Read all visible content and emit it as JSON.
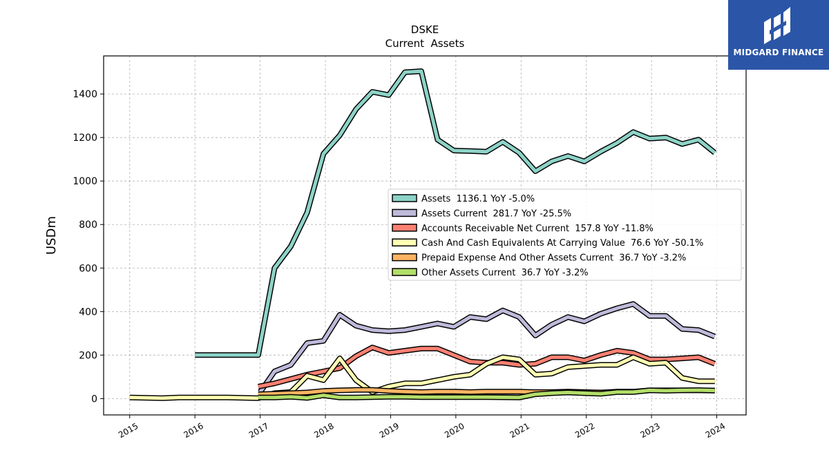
{
  "chart_data": {
    "type": "line",
    "title": "DSKE",
    "subtitle": "Current  Assets",
    "xlabel": "",
    "ylabel": "USDm",
    "xlim": [
      2014.6,
      2024.45
    ],
    "ylim": [
      -75,
      1575
    ],
    "x_ticks": [
      2015,
      2016,
      2017,
      2018,
      2019,
      2020,
      2021,
      2022,
      2023,
      2024
    ],
    "x_tick_labels": [
      "2015",
      "2016",
      "2017",
      "2018",
      "2019",
      "2020",
      "2021",
      "2022",
      "2023",
      "2024"
    ],
    "y_ticks": [
      0,
      200,
      400,
      600,
      800,
      1000,
      1200,
      1400
    ],
    "y_tick_labels": [
      "0",
      "200",
      "400",
      "600",
      "800",
      "1000",
      "1200",
      "1400"
    ],
    "grid": true,
    "legend_position": "center-right",
    "series": [
      {
        "name": "Assets  1136.1 YoY -5.0%",
        "color": "#8dd3c7",
        "points": [
          [
            2016.0,
            200
          ],
          [
            2016.97,
            200
          ],
          [
            2017.22,
            600
          ],
          [
            2017.47,
            700
          ],
          [
            2017.72,
            855
          ],
          [
            2017.97,
            1125
          ],
          [
            2018.22,
            1210
          ],
          [
            2018.47,
            1330
          ],
          [
            2018.72,
            1410
          ],
          [
            2018.97,
            1395
          ],
          [
            2019.22,
            1500
          ],
          [
            2019.47,
            1505
          ],
          [
            2019.72,
            1190
          ],
          [
            2019.97,
            1140
          ],
          [
            2020.22,
            1138
          ],
          [
            2020.47,
            1135
          ],
          [
            2020.72,
            1180
          ],
          [
            2020.97,
            1130
          ],
          [
            2021.22,
            1045
          ],
          [
            2021.47,
            1090
          ],
          [
            2021.72,
            1115
          ],
          [
            2021.97,
            1090
          ],
          [
            2022.22,
            1135
          ],
          [
            2022.47,
            1175
          ],
          [
            2022.72,
            1225
          ],
          [
            2022.97,
            1195
          ],
          [
            2023.22,
            1200
          ],
          [
            2023.47,
            1170
          ],
          [
            2023.72,
            1190
          ],
          [
            2023.97,
            1130
          ]
        ]
      },
      {
        "name": "Assets Current  281.7 YoY -25.5%",
        "color": "#bebada",
        "points": [
          [
            2017.0,
            30
          ],
          [
            2017.22,
            125
          ],
          [
            2017.47,
            155
          ],
          [
            2017.72,
            255
          ],
          [
            2017.97,
            265
          ],
          [
            2018.22,
            385
          ],
          [
            2018.47,
            335
          ],
          [
            2018.72,
            315
          ],
          [
            2018.97,
            310
          ],
          [
            2019.22,
            315
          ],
          [
            2019.47,
            330
          ],
          [
            2019.72,
            345
          ],
          [
            2019.97,
            330
          ],
          [
            2020.22,
            375
          ],
          [
            2020.47,
            365
          ],
          [
            2020.72,
            405
          ],
          [
            2020.97,
            375
          ],
          [
            2021.22,
            290
          ],
          [
            2021.47,
            340
          ],
          [
            2021.72,
            375
          ],
          [
            2021.97,
            355
          ],
          [
            2022.22,
            390
          ],
          [
            2022.47,
            415
          ],
          [
            2022.72,
            435
          ],
          [
            2022.97,
            380
          ],
          [
            2023.22,
            380
          ],
          [
            2023.47,
            320
          ],
          [
            2023.72,
            315
          ],
          [
            2023.97,
            285
          ]
        ]
      },
      {
        "name": "Accounts Receivable Net Current  157.8 YoY -11.8%",
        "color": "#fb8072",
        "points": [
          [
            2016.97,
            55
          ],
          [
            2017.22,
            70
          ],
          [
            2017.47,
            90
          ],
          [
            2017.72,
            110
          ],
          [
            2017.97,
            125
          ],
          [
            2018.22,
            140
          ],
          [
            2018.47,
            195
          ],
          [
            2018.72,
            235
          ],
          [
            2018.97,
            210
          ],
          [
            2019.22,
            220
          ],
          [
            2019.47,
            230
          ],
          [
            2019.72,
            230
          ],
          [
            2019.97,
            200
          ],
          [
            2020.22,
            170
          ],
          [
            2020.47,
            165
          ],
          [
            2020.72,
            165
          ],
          [
            2020.97,
            155
          ],
          [
            2021.22,
            160
          ],
          [
            2021.47,
            190
          ],
          [
            2021.72,
            190
          ],
          [
            2021.97,
            175
          ],
          [
            2022.22,
            200
          ],
          [
            2022.47,
            220
          ],
          [
            2022.72,
            210
          ],
          [
            2022.97,
            180
          ],
          [
            2023.22,
            180
          ],
          [
            2023.47,
            185
          ],
          [
            2023.72,
            190
          ],
          [
            2023.97,
            160
          ]
        ]
      },
      {
        "name": "Cash And Cash Equivalents At Carrying Value  76.6 YoY -50.1%",
        "color": "#ffffb3",
        "points": [
          [
            2015.0,
            5
          ],
          [
            2015.5,
            2
          ],
          [
            2015.75,
            5
          ],
          [
            2016.5,
            5
          ],
          [
            2016.97,
            2
          ],
          [
            2017.22,
            25
          ],
          [
            2017.47,
            30
          ],
          [
            2017.72,
            105
          ],
          [
            2017.97,
            85
          ],
          [
            2018.22,
            185
          ],
          [
            2018.47,
            85
          ],
          [
            2018.72,
            30
          ],
          [
            2018.97,
            55
          ],
          [
            2019.22,
            70
          ],
          [
            2019.47,
            70
          ],
          [
            2019.72,
            85
          ],
          [
            2019.97,
            100
          ],
          [
            2020.22,
            110
          ],
          [
            2020.47,
            160
          ],
          [
            2020.72,
            190
          ],
          [
            2020.97,
            180
          ],
          [
            2021.22,
            110
          ],
          [
            2021.47,
            115
          ],
          [
            2021.72,
            145
          ],
          [
            2021.97,
            150
          ],
          [
            2022.22,
            155
          ],
          [
            2022.47,
            155
          ],
          [
            2022.72,
            190
          ],
          [
            2022.97,
            160
          ],
          [
            2023.22,
            165
          ],
          [
            2023.47,
            95
          ],
          [
            2023.72,
            80
          ],
          [
            2023.97,
            80
          ]
        ]
      },
      {
        "name": "Prepaid Expense And Other Assets Current  36.7 YoY -3.2%",
        "color": "#fdb462",
        "points": [
          [
            2016.97,
            20
          ],
          [
            2017.22,
            22
          ],
          [
            2017.47,
            25
          ],
          [
            2017.72,
            28
          ],
          [
            2017.97,
            35
          ],
          [
            2018.22,
            38
          ],
          [
            2018.47,
            40
          ],
          [
            2018.72,
            40
          ],
          [
            2018.97,
            35
          ],
          [
            2019.22,
            32
          ],
          [
            2019.47,
            30
          ],
          [
            2019.72,
            32
          ],
          [
            2019.97,
            32
          ],
          [
            2020.22,
            30
          ],
          [
            2020.47,
            32
          ],
          [
            2020.72,
            32
          ],
          [
            2020.97,
            32
          ],
          [
            2021.22,
            30
          ],
          [
            2021.47,
            30
          ],
          [
            2021.72,
            32
          ],
          [
            2021.97,
            30
          ],
          [
            2022.22,
            28
          ],
          [
            2022.47,
            32
          ],
          [
            2022.72,
            32
          ],
          [
            2022.97,
            38
          ],
          [
            2023.22,
            38
          ],
          [
            2023.47,
            38
          ],
          [
            2023.72,
            38
          ],
          [
            2023.97,
            37
          ]
        ]
      },
      {
        "name": "Other Assets Current  36.7 YoY -3.2%",
        "color": "#b3de69",
        "points": [
          [
            2016.97,
            5
          ],
          [
            2017.22,
            5
          ],
          [
            2017.47,
            8
          ],
          [
            2017.72,
            3
          ],
          [
            2017.97,
            15
          ],
          [
            2018.22,
            5
          ],
          [
            2018.47,
            5
          ],
          [
            2018.72,
            7
          ],
          [
            2018.97,
            8
          ],
          [
            2019.22,
            8
          ],
          [
            2019.47,
            7
          ],
          [
            2019.72,
            7
          ],
          [
            2019.97,
            7
          ],
          [
            2020.22,
            7
          ],
          [
            2020.47,
            7
          ],
          [
            2020.72,
            6
          ],
          [
            2020.97,
            5
          ],
          [
            2021.22,
            20
          ],
          [
            2021.47,
            25
          ],
          [
            2021.72,
            28
          ],
          [
            2021.97,
            25
          ],
          [
            2022.22,
            22
          ],
          [
            2022.47,
            30
          ],
          [
            2022.72,
            30
          ],
          [
            2022.97,
            38
          ],
          [
            2023.22,
            36
          ],
          [
            2023.47,
            38
          ],
          [
            2023.72,
            39
          ],
          [
            2023.97,
            37
          ]
        ]
      }
    ]
  },
  "logo": {
    "text": "MIDGARD FINANCE",
    "color": "#2b56a8"
  }
}
